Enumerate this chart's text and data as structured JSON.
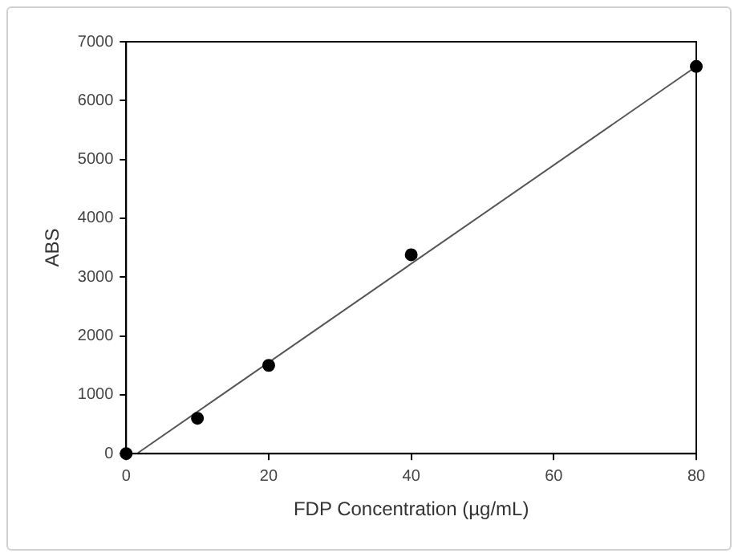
{
  "chart_data": {
    "type": "scatter",
    "xlabel": "FDP Concentration (µg/mL)",
    "ylabel": "ABS",
    "xlim": [
      0,
      80
    ],
    "xticks": [
      0,
      20,
      40,
      60,
      80
    ],
    "ylim": [
      0,
      7000
    ],
    "yticks": [
      0,
      1000,
      2000,
      3000,
      4000,
      5000,
      6000,
      7000
    ],
    "grid": false,
    "legend": false,
    "marker": "circle",
    "series": [
      {
        "type": "scatter",
        "color": "#000000",
        "x": [
          0,
          10,
          20,
          40,
          80
        ],
        "values": [
          0,
          600,
          1500,
          3380,
          6580
        ]
      },
      {
        "type": "line",
        "color": "#555555",
        "marker": "none",
        "line_style": "solid",
        "x": [
          1.5,
          80
        ],
        "values": [
          0,
          6580
        ]
      }
    ]
  }
}
